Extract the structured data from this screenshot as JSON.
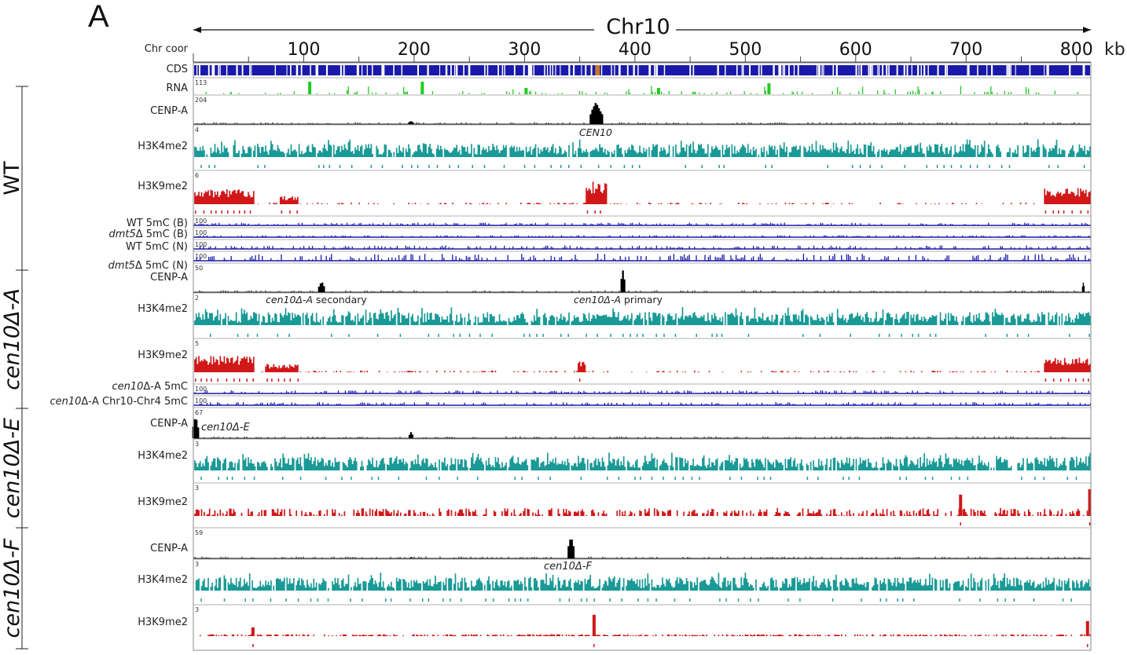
{
  "panel_label": "A",
  "chromosome": "Chr10",
  "coord_row_label": "Chr coor",
  "coord_unit": "kb",
  "coord_ticks": [
    "100",
    "200",
    "300",
    "400",
    "500",
    "600",
    "700",
    "800"
  ],
  "coord_range_kb": [
    0,
    813
  ],
  "colors": {
    "cds": "#1a1aaa",
    "rna": "#22cc22",
    "cenpa": "#000000",
    "h3k4": "#1a9a96",
    "h3k9": "#d01818",
    "methyl": "#1a1aaa"
  },
  "groups": [
    {
      "key": "wt",
      "label": "WT"
    },
    {
      "key": "a",
      "label": "cen10Δ-A"
    },
    {
      "key": "e",
      "label": "cen10Δ-E"
    },
    {
      "key": "f",
      "label": "cen10Δ-F"
    }
  ],
  "tracks": {
    "cds": {
      "label": "CDS"
    },
    "rna": {
      "label": "RNA",
      "scale": "113"
    },
    "wt_cenpa": {
      "label": "CENP-A",
      "scale": "204"
    },
    "wt_h3k4": {
      "label": "H3K4me2",
      "scale": "4"
    },
    "wt_h3k9": {
      "label": "H3K9me2",
      "scale": "6"
    },
    "wt_5mcB": {
      "label": "WT 5mC (B)",
      "scale": "100"
    },
    "dmt_5mcB": {
      "label_it": "dmt5",
      "label_rest": "Δ 5mC (B)",
      "scale": "100"
    },
    "wt_5mcN": {
      "label": "WT 5mC (N)",
      "scale": "100"
    },
    "dmt_5mcN": {
      "label_it": "dmt5",
      "label_rest": "Δ 5mC (N)",
      "scale": "100"
    },
    "a_cenpa": {
      "label": "CENP-A",
      "scale": "50"
    },
    "a_h3k4": {
      "label": "H3K4me2",
      "scale": "2"
    },
    "a_h3k9": {
      "label": "H3K9me2",
      "scale": "5"
    },
    "a_5mc": {
      "label_it": "cen10",
      "label_rest": "Δ-A 5mC",
      "scale": "100"
    },
    "a_5mc_fuse": {
      "label_it": "cen10",
      "label_rest": "Δ-A Chr10-Chr4 5mC",
      "scale": "100"
    },
    "e_cenpa": {
      "label": "CENP-A",
      "scale": "67"
    },
    "e_h3k4": {
      "label": "H3K4me2",
      "scale": "3"
    },
    "e_h3k9": {
      "label": "H3K9me2",
      "scale": "3"
    },
    "f_cenpa": {
      "label": "CENP-A",
      "scale": "59"
    },
    "f_h3k4": {
      "label": "H3K4me2",
      "scale": "3"
    },
    "f_h3k9": {
      "label": "H3K9me2",
      "scale": "3"
    }
  },
  "annotations": {
    "cen10": "CEN10",
    "a_secondary_it": "cen10Δ-A",
    "a_secondary_rest": " secondary",
    "a_primary_it": "cen10Δ-A",
    "a_primary_rest": " primary",
    "cen10e": "cen10Δ-E",
    "cen10f": "cen10Δ-F"
  },
  "peaks_kb": {
    "wt_cenpa": [
      {
        "at": 365,
        "height": 1.0,
        "width": 12
      },
      {
        "at": 197,
        "height": 0.15,
        "width": 5
      }
    ],
    "a_cenpa": [
      {
        "at": 389,
        "height": 1.0,
        "width": 4
      },
      {
        "at": 116,
        "height": 0.5,
        "width": 6
      },
      {
        "at": 806,
        "height": 0.45,
        "width": 2
      }
    ],
    "e_cenpa": [
      {
        "at": 2,
        "height": 0.9,
        "width": 6
      },
      {
        "at": 197,
        "height": 0.25,
        "width": 4
      }
    ],
    "f_cenpa": [
      {
        "at": 342,
        "height": 1.0,
        "width": 6
      },
      {
        "at": 197,
        "height": 0.05,
        "width": 2
      }
    ],
    "wt_h3k9": [
      {
        "from": 0,
        "to": 55,
        "height": 0.55
      },
      {
        "from": 78,
        "to": 95,
        "height": 0.3
      },
      {
        "from": 355,
        "to": 375,
        "height": 0.85
      },
      {
        "from": 770,
        "to": 813,
        "height": 0.6
      }
    ],
    "a_h3k9": [
      {
        "from": 0,
        "to": 55,
        "height": 0.6
      },
      {
        "from": 65,
        "to": 95,
        "height": 0.3
      },
      {
        "from": 348,
        "to": 355,
        "height": 0.4
      },
      {
        "from": 770,
        "to": 813,
        "height": 0.55
      }
    ],
    "e_h3k9": [
      {
        "at": 695,
        "height": 0.8
      },
      {
        "at": 812,
        "height": 1.0
      }
    ],
    "f_h3k9": [
      {
        "at": 54,
        "height": 0.35
      },
      {
        "at": 363,
        "height": 0.85
      },
      {
        "at": 810,
        "height": 0.6
      }
    ]
  }
}
